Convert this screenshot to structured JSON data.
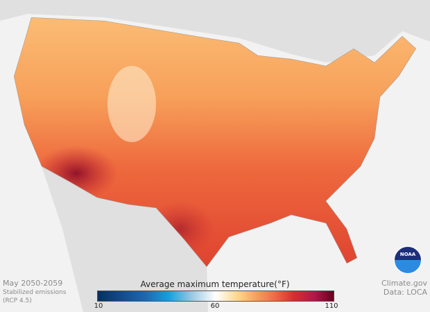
{
  "caption": {
    "period": "May 2050-2059",
    "scenario_line1": "Stabilized emissions",
    "scenario_line2": "(RCP 4.5)"
  },
  "credit": {
    "source": "Climate.gov",
    "data": "Data: LOCA"
  },
  "legend": {
    "title": "Average maximum temperature(°F)",
    "min_label": "10",
    "mid_label": "60",
    "max_label": "110",
    "colors": [
      "#053061",
      "#15a0dc",
      "#ffffff",
      "#fdd384",
      "#ef6a4c",
      "#b0174a",
      "#67001f"
    ]
  },
  "logo": {
    "text": "NOAA"
  }
}
